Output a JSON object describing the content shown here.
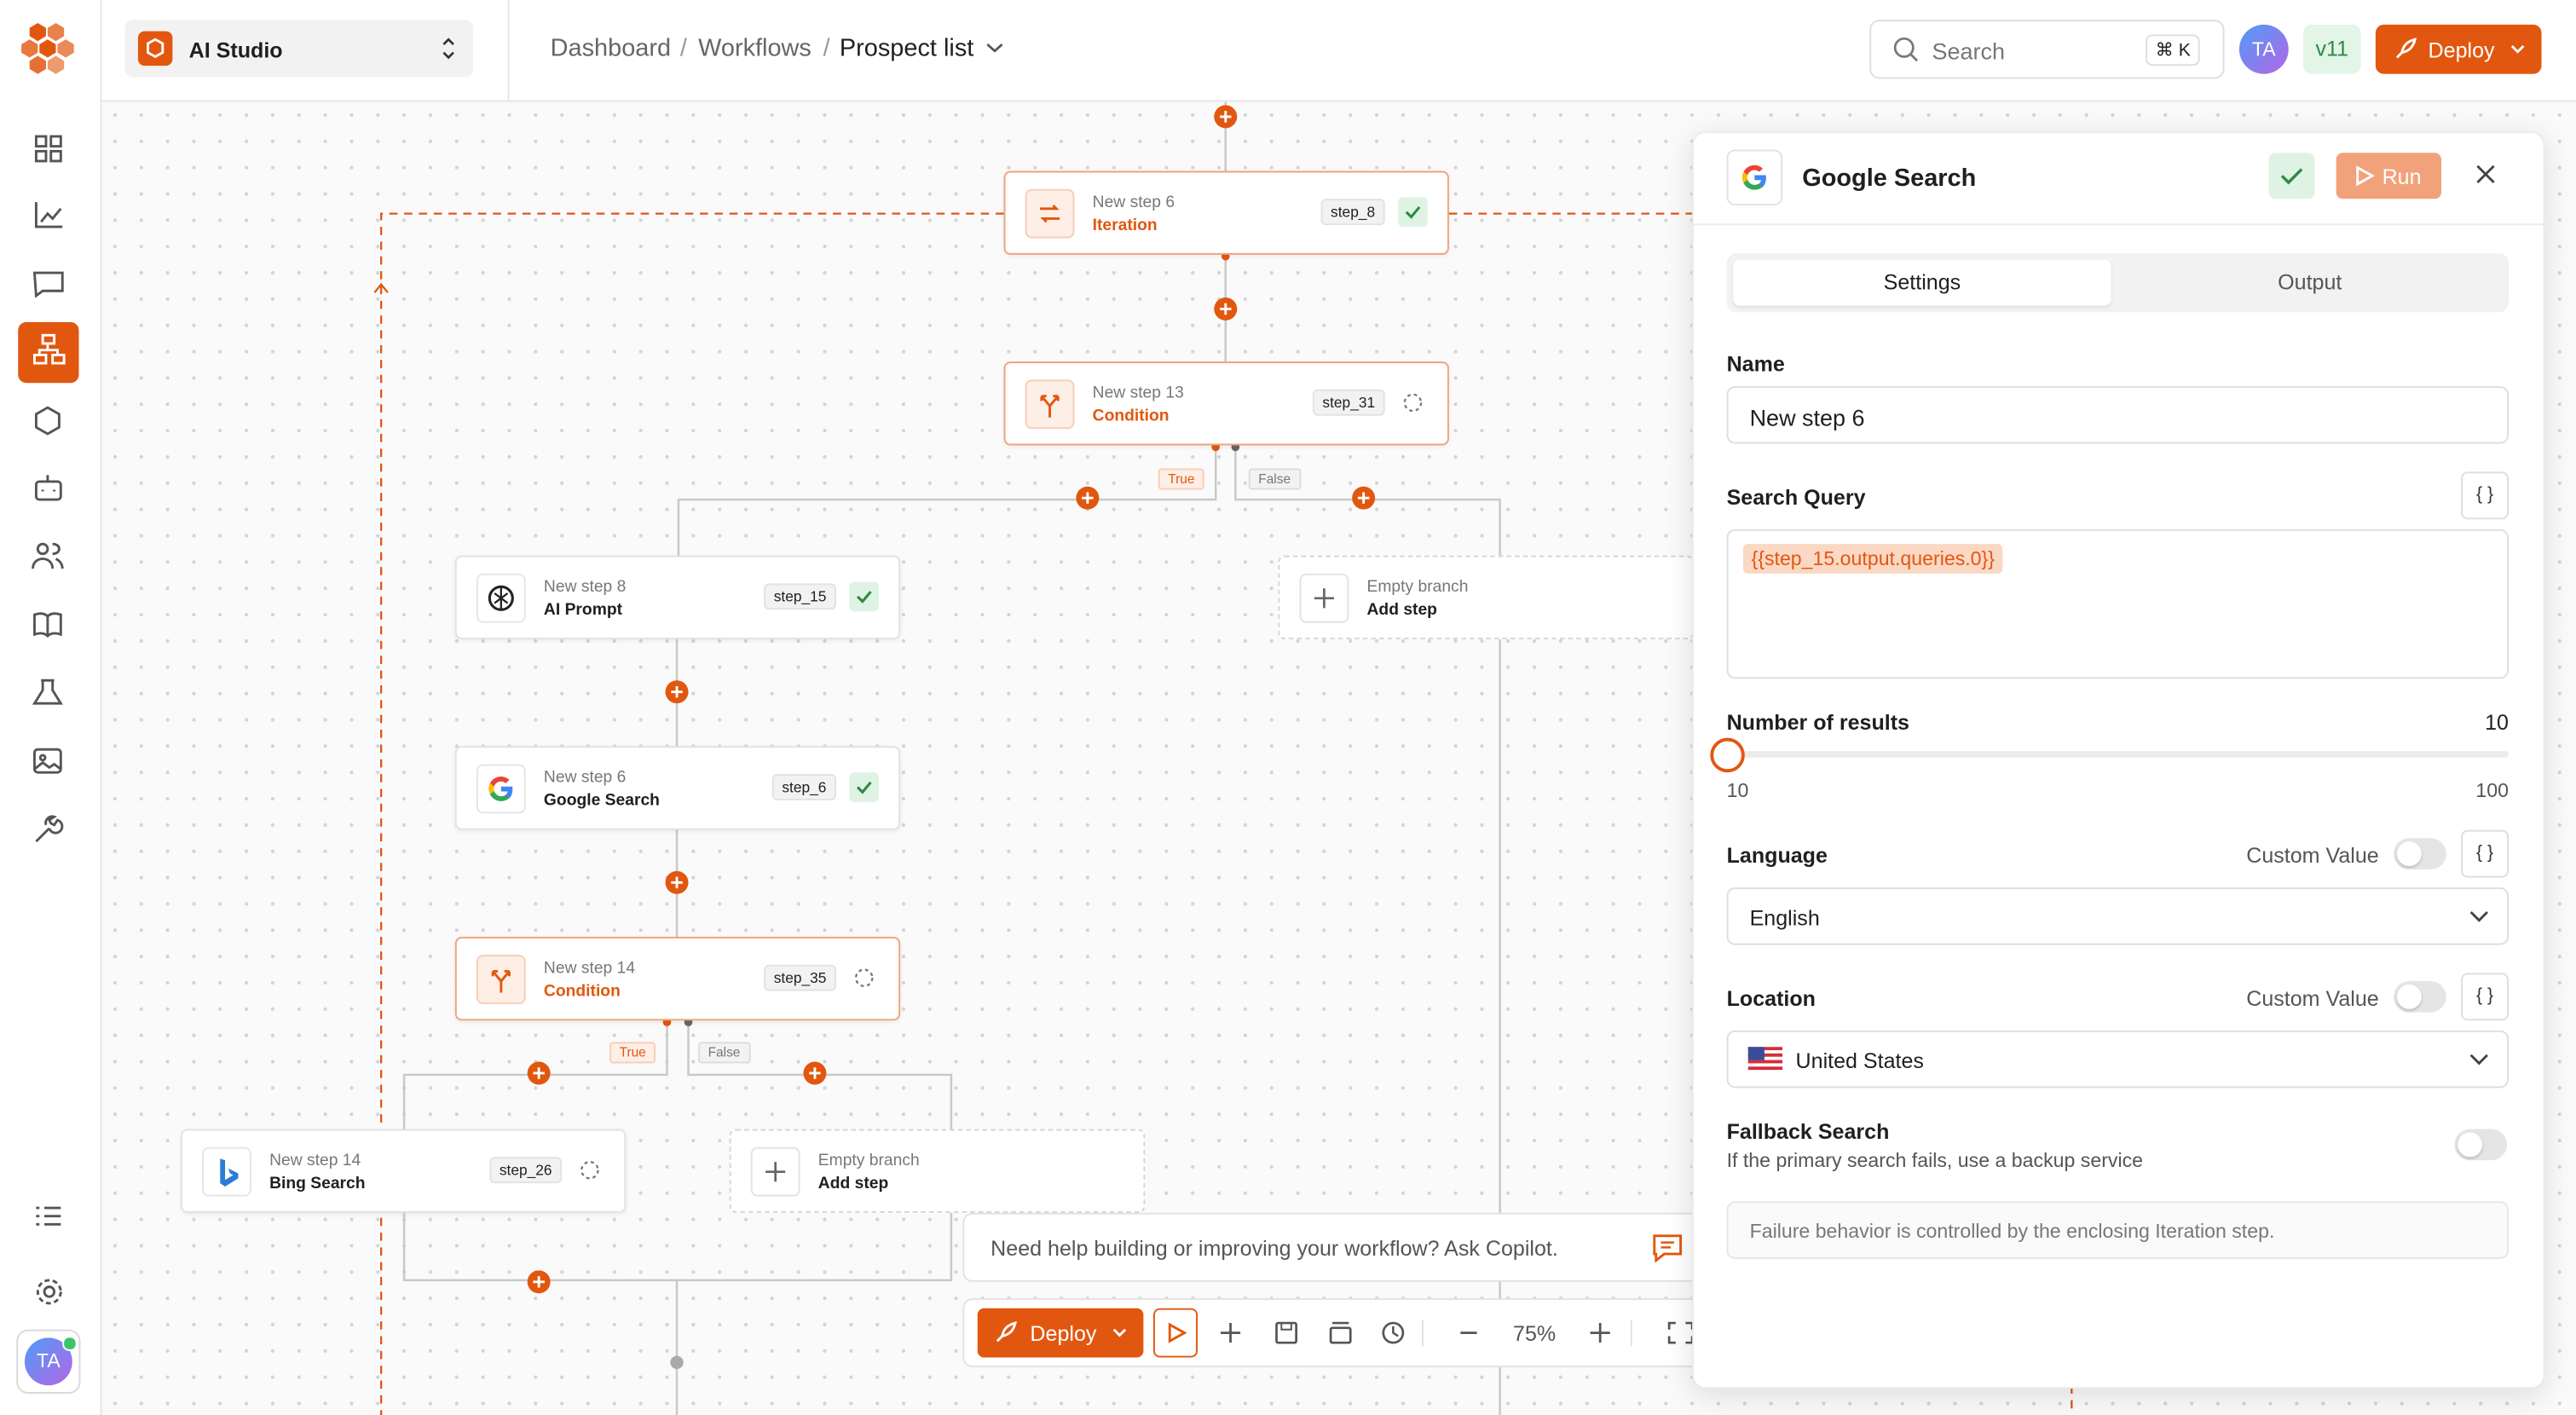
{
  "sidebar": {
    "workspace": "AI Studio",
    "user_initials": "TA"
  },
  "header": {
    "breadcrumb": [
      "Dashboard",
      "Workflows",
      "Prospect list"
    ],
    "search_placeholder": "Search",
    "search_shortcut": "⌘ K",
    "user_initials": "TA",
    "version": "v11",
    "deploy": "Deploy"
  },
  "canvas": {
    "nodes": [
      {
        "step": "New step 6",
        "label": "Iteration",
        "id": "step_8"
      },
      {
        "step": "New step 13",
        "label": "Condition",
        "id": "step_31"
      },
      {
        "step": "New step 8",
        "label": "AI Prompt",
        "id": "step_15"
      },
      {
        "step": "New step 6",
        "label": "Google Search",
        "id": "step_6"
      },
      {
        "step": "New step 14",
        "label": "Condition",
        "id": "step_35"
      },
      {
        "step": "New step 14",
        "label": "Bing Search",
        "id": "step_26"
      }
    ],
    "empty_branches": [
      {
        "label": "Empty branch",
        "action": "Add step"
      },
      {
        "label": "Empty branch",
        "action": "Add step"
      }
    ],
    "branch_labels": [
      "True",
      "False",
      "True",
      "False"
    ],
    "copilot_prompt": "Need help building or improving your workflow? Ask Copilot.",
    "toolbar": {
      "deploy": "Deploy",
      "zoom": "75%"
    }
  },
  "panel": {
    "title": "Google Search",
    "run": "Run",
    "tabs": [
      "Settings",
      "Output"
    ],
    "code_button": "{ }",
    "name_label": "Name",
    "name": "New step 6",
    "query_label": "Search Query",
    "query": "{{step_15.output.queries.0}}",
    "results_label": "Number of results",
    "results": 10,
    "results_min": 10,
    "results_max": 100,
    "language_label": "Language",
    "custom_value": "Custom Value",
    "language": "English",
    "location_label": "Location",
    "location": "United States",
    "fallback_label": "Fallback Search",
    "fallback_help": "If the primary search fails, use a backup service",
    "note": "Failure behavior is controlled by the enclosing Iteration step."
  }
}
